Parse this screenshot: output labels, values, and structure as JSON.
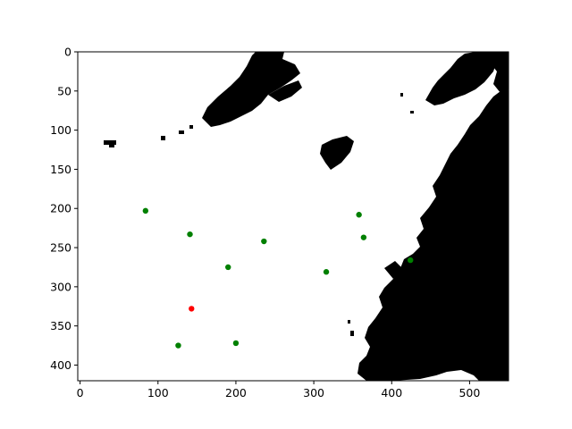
{
  "chart_data": {
    "type": "scatter",
    "title": "",
    "xlabel": "",
    "ylabel": "",
    "xlim": [
      -3,
      550
    ],
    "ylim": [
      0,
      420
    ],
    "y_inverted": true,
    "grid": false,
    "background": "binary land/water mask image (black = land, white = water)",
    "x_ticks": [
      0,
      100,
      200,
      300,
      400,
      500
    ],
    "y_ticks": [
      0,
      50,
      100,
      150,
      200,
      250,
      300,
      350,
      400
    ],
    "series": [
      {
        "color": "#008000",
        "points": [
          {
            "x": 84,
            "y": 203
          },
          {
            "x": 141,
            "y": 233
          },
          {
            "x": 236,
            "y": 242
          },
          {
            "x": 190,
            "y": 275
          },
          {
            "x": 316,
            "y": 281
          },
          {
            "x": 358,
            "y": 208
          },
          {
            "x": 364,
            "y": 237
          },
          {
            "x": 424,
            "y": 266
          },
          {
            "x": 126,
            "y": 375
          },
          {
            "x": 200,
            "y": 372
          }
        ]
      },
      {
        "color": "#ff0000",
        "points": [
          {
            "x": 143,
            "y": 328
          }
        ]
      }
    ]
  }
}
